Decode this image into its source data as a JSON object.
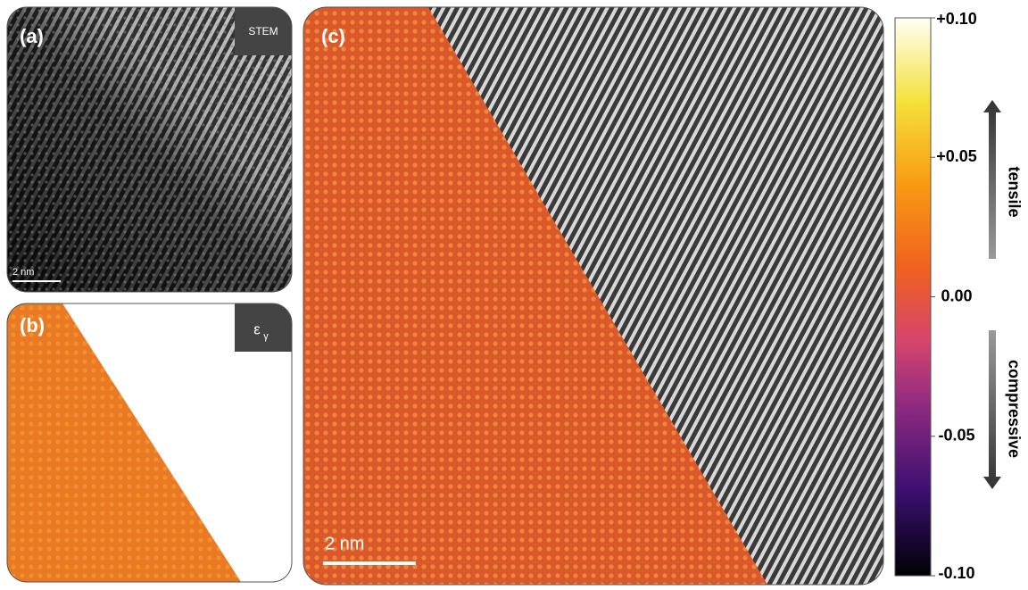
{
  "panels": {
    "a": {
      "label": "(a)",
      "badge": "STEM",
      "scale_bar": "2 nm"
    },
    "b": {
      "label": "(b)",
      "badge": {
        "symbol": "ε",
        "subscript": "γ"
      }
    },
    "c": {
      "label": "(c)",
      "scale_bar": "2 nm"
    }
  },
  "colorbar": {
    "range": [
      -0.1,
      0.1
    ],
    "ticks": [
      {
        "value": 0.1,
        "label": "+0.10"
      },
      {
        "value": 0.05,
        "label": "+0.05"
      },
      {
        "value": 0,
        "label": "0.00"
      },
      {
        "value": -0.05,
        "label": "-0.05"
      },
      {
        "value": -0.1,
        "label": "-0.10"
      }
    ],
    "upper_arrow": "tensile",
    "lower_arrow": "compressive"
  }
}
